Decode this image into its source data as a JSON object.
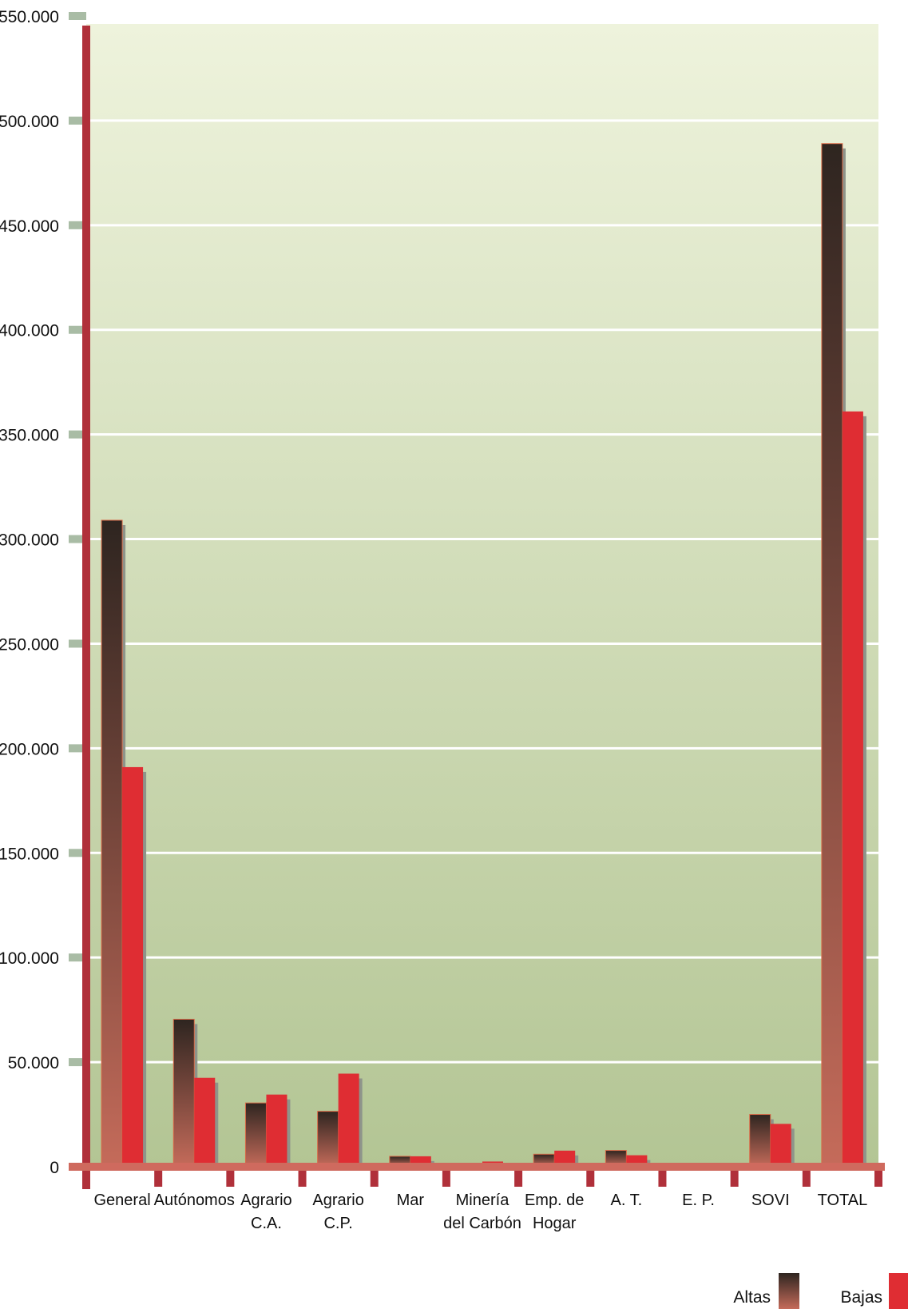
{
  "chart_data": {
    "type": "bar",
    "title": "",
    "xlabel": "",
    "ylabel": "",
    "ylim": [
      0,
      550000
    ],
    "yticks": [
      0,
      50000,
      100000,
      150000,
      200000,
      250000,
      300000,
      350000,
      400000,
      450000,
      500000,
      550000
    ],
    "ytick_labels": [
      "0",
      "50.000",
      "100.000",
      "150.000",
      "200.000",
      "250.000",
      "300.000",
      "350.000",
      "400.000",
      "450.000",
      "500.000",
      "550.000"
    ],
    "categories": [
      [
        "General"
      ],
      [
        "Autónomos"
      ],
      [
        "Agrario",
        "C.A."
      ],
      [
        "Agrario",
        "C.P."
      ],
      [
        "Mar"
      ],
      [
        "Minería",
        "del Carbón"
      ],
      [
        "Emp. de",
        "Hogar"
      ],
      [
        "A. T."
      ],
      [
        "E. P."
      ],
      [
        "SOVI"
      ],
      [
        "TOTAL"
      ]
    ],
    "series": [
      {
        "name": "Altas",
        "values": [
          309000,
          70500,
          30500,
          26500,
          5000,
          1500,
          6000,
          7800,
          0,
          25000,
          489000
        ]
      },
      {
        "name": "Bajas",
        "values": [
          191000,
          42500,
          34500,
          44500,
          5000,
          2500,
          7700,
          5500,
          1300,
          20500,
          361000
        ]
      }
    ],
    "grid": true,
    "legend_position": "bottom-right",
    "colors": {
      "altas_top": "#2e2520",
      "altas_bottom": "#c56b5a",
      "bajas": "#df2d33",
      "axis": "#b0303a",
      "tick_mark": "#a9bca5",
      "bg_top": "#eef3dc",
      "bg_bottom": "#b3c594",
      "grid": "#ffffff",
      "shadow": "#8e948a"
    }
  }
}
